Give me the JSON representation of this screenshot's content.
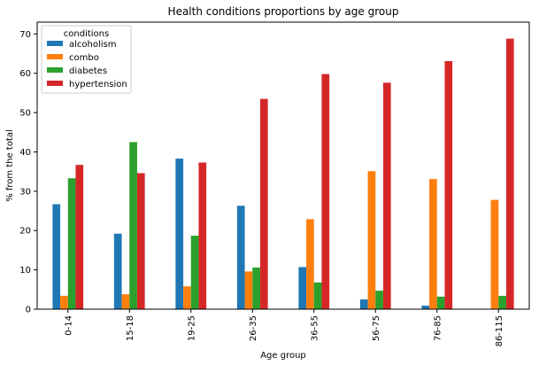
{
  "chart_data": {
    "type": "bar",
    "title": "Health conditions proportions by age group",
    "xlabel": "Age group",
    "ylabel": "% from the total",
    "categories": [
      "0-14",
      "15-18",
      "19-25",
      "26-35",
      "36-55",
      "56-75",
      "76-85",
      "86-115"
    ],
    "ylim": [
      0,
      73
    ],
    "yticks": [
      0,
      10,
      20,
      30,
      40,
      50,
      60,
      70
    ],
    "legend_title": "conditions",
    "legend_position": "top-left",
    "grid": false,
    "series": [
      {
        "name": "alcoholism",
        "color": "#1f77b4",
        "values": [
          26.7,
          19.2,
          38.3,
          26.3,
          10.7,
          2.5,
          0.9,
          0.0
        ]
      },
      {
        "name": "combo",
        "color": "#ff7f0e",
        "values": [
          3.4,
          3.8,
          5.8,
          9.6,
          22.9,
          35.1,
          33.1,
          27.8
        ]
      },
      {
        "name": "diabetes",
        "color": "#2ca02c",
        "values": [
          33.3,
          42.5,
          18.7,
          10.6,
          6.8,
          4.7,
          3.2,
          3.4
        ]
      },
      {
        "name": "hypertension",
        "color": "#d62728",
        "values": [
          36.7,
          34.6,
          37.3,
          53.5,
          59.8,
          57.6,
          63.1,
          68.8
        ]
      }
    ]
  }
}
